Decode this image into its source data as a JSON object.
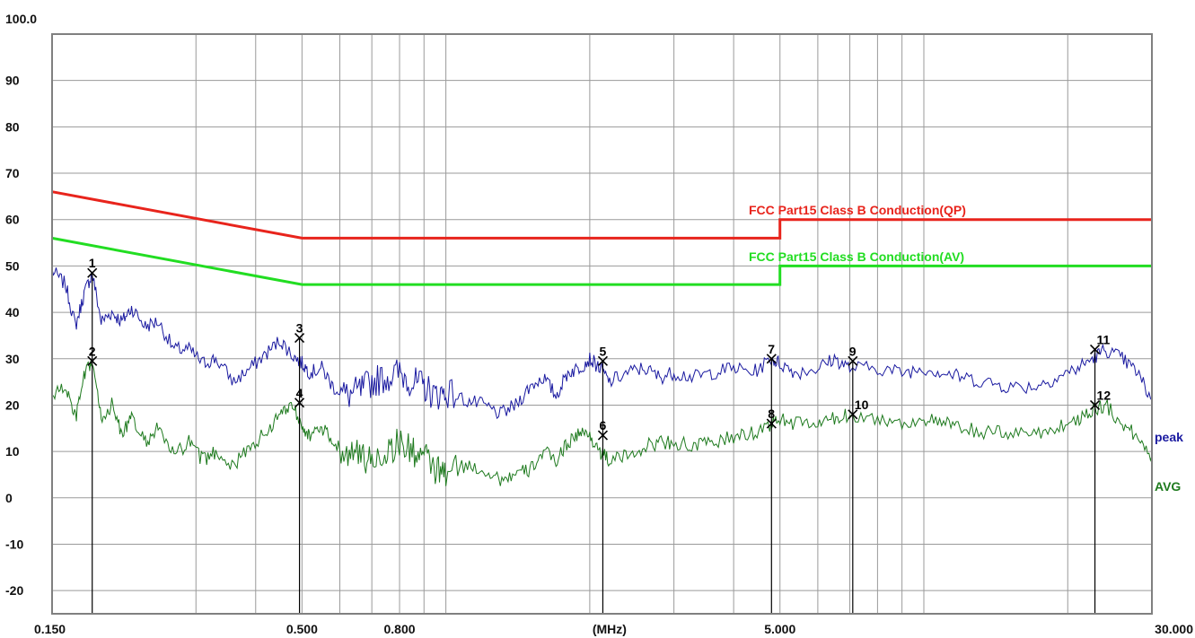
{
  "chart_data": {
    "type": "line",
    "x_scale": "log",
    "xlim": [
      0.15,
      30
    ],
    "ylim": [
      -25,
      100
    ],
    "grid": true,
    "y_top_label": "100.0",
    "y_tick_labels": [
      "90",
      "80",
      "70",
      "60",
      "50",
      "40",
      "30",
      "20",
      "10",
      "0",
      "-10",
      "-20"
    ],
    "y_ticks": [
      90,
      80,
      70,
      60,
      50,
      40,
      30,
      20,
      10,
      0,
      -10,
      -20
    ],
    "x_tick_labels": [
      "0.150",
      "0.500",
      "0.800",
      "(MHz)",
      "5.000",
      "30.000"
    ],
    "x_tick_values": [
      0.15,
      0.5,
      0.8,
      2.2,
      5.0,
      30.0
    ],
    "x_gridlines": [
      0.3,
      0.4,
      0.5,
      0.6,
      0.7,
      0.8,
      0.9,
      1,
      2,
      3,
      4,
      5,
      6,
      7,
      8,
      9,
      10,
      20
    ],
    "colors": {
      "grid": "#9a9a9a",
      "frame": "#808080",
      "qp_limit": "#e8241c",
      "av_limit": "#22dd22",
      "peak": "#1a1aa0",
      "avg": "#1e7a1e",
      "marker": "#000000"
    },
    "limit_lines": [
      {
        "name": "FCC Part15 Class B Conduction(QP)",
        "x": [
          0.15,
          0.5,
          5.0,
          5.0,
          30.0
        ],
        "y": [
          66,
          56,
          56,
          60,
          60
        ]
      },
      {
        "name": "FCC Part15 Class B Conduction(AV)",
        "x": [
          0.15,
          0.5,
          5.0,
          5.0,
          30.0
        ],
        "y": [
          56,
          46,
          46,
          50,
          50
        ]
      }
    ],
    "series": [
      {
        "name": "peak",
        "x": [
          0.15,
          0.16,
          0.168,
          0.175,
          0.182,
          0.19,
          0.2,
          0.21,
          0.22,
          0.235,
          0.25,
          0.27,
          0.29,
          0.31,
          0.33,
          0.36,
          0.39,
          0.42,
          0.45,
          0.475,
          0.5,
          0.52,
          0.55,
          0.58,
          0.62,
          0.66,
          0.7,
          0.75,
          0.8,
          0.85,
          0.9,
          0.95,
          1.0,
          1.1,
          1.2,
          1.3,
          1.4,
          1.5,
          1.6,
          1.7,
          1.8,
          1.9,
          2.0,
          2.1,
          2.2,
          2.4,
          2.6,
          2.8,
          3.0,
          3.3,
          3.6,
          4.0,
          4.4,
          4.8,
          5.0,
          5.4,
          6.0,
          6.5,
          7.0,
          8.0,
          9.0,
          10.0,
          11.0,
          12.0,
          13.5,
          15.0,
          17.0,
          19.0,
          21.0,
          22.5,
          24.0,
          26.0,
          28.0,
          30.0
        ],
        "y": [
          49,
          46,
          37,
          44,
          48.5,
          38,
          40,
          38,
          41,
          37,
          38,
          32,
          32,
          29,
          30,
          25,
          28,
          31,
          34,
          31,
          29,
          27,
          28,
          24,
          22,
          23,
          25,
          26,
          27,
          25,
          24,
          22,
          23,
          21,
          20,
          18,
          20,
          24,
          26,
          22,
          27,
          28,
          30,
          28,
          25,
          27,
          28,
          26,
          27,
          26,
          27,
          28,
          27,
          30,
          29,
          27,
          28,
          30,
          28,
          28,
          27,
          28,
          27,
          26,
          25,
          24,
          24,
          26,
          28,
          30,
          32,
          30,
          27,
          21
        ]
      },
      {
        "name": "AVG",
        "x": [
          0.15,
          0.16,
          0.168,
          0.175,
          0.182,
          0.19,
          0.2,
          0.21,
          0.22,
          0.235,
          0.25,
          0.27,
          0.29,
          0.31,
          0.33,
          0.36,
          0.39,
          0.42,
          0.45,
          0.475,
          0.5,
          0.52,
          0.55,
          0.58,
          0.62,
          0.66,
          0.7,
          0.75,
          0.8,
          0.85,
          0.9,
          0.95,
          1.0,
          1.1,
          1.2,
          1.3,
          1.4,
          1.5,
          1.6,
          1.7,
          1.8,
          1.9,
          2.0,
          2.1,
          2.2,
          2.4,
          2.6,
          2.8,
          3.0,
          3.3,
          3.6,
          4.0,
          4.4,
          4.8,
          5.0,
          5.4,
          6.0,
          6.5,
          7.0,
          8.0,
          9.0,
          10.0,
          11.0,
          12.0,
          13.5,
          15.0,
          17.0,
          19.0,
          21.0,
          22.5,
          24.0,
          26.0,
          28.0,
          30.0
        ],
        "y": [
          22,
          24,
          17,
          26,
          29.5,
          17,
          20,
          14,
          17,
          12,
          15,
          9,
          12,
          8,
          10,
          7,
          11,
          14,
          18,
          20.5,
          16,
          13,
          15,
          12,
          10,
          9,
          8,
          10,
          12,
          10,
          9,
          6,
          5,
          7,
          6,
          4,
          5,
          6,
          10,
          8,
          12,
          14,
          13.5,
          10,
          8,
          9,
          11,
          12,
          12,
          11,
          12,
          13,
          14,
          16,
          17,
          16,
          16,
          17,
          18,
          17,
          16,
          17,
          16,
          15,
          14,
          14,
          14,
          15,
          17,
          19,
          20,
          16,
          13,
          9
        ]
      }
    ],
    "markers": [
      {
        "label": "1",
        "x": 0.182,
        "y": 48.5
      },
      {
        "label": "2",
        "x": 0.182,
        "y": 29.5
      },
      {
        "label": "3",
        "x": 0.494,
        "y": 34.5
      },
      {
        "label": "4",
        "x": 0.494,
        "y": 20.5
      },
      {
        "label": "5",
        "x": 2.13,
        "y": 29.5
      },
      {
        "label": "6",
        "x": 2.13,
        "y": 13.5
      },
      {
        "label": "7",
        "x": 4.8,
        "y": 30.0
      },
      {
        "label": "8",
        "x": 4.8,
        "y": 16.0
      },
      {
        "label": "9",
        "x": 7.1,
        "y": 29.5
      },
      {
        "label": "10",
        "x": 7.1,
        "y": 18.0
      },
      {
        "label": "11",
        "x": 22.8,
        "y": 32.0
      },
      {
        "label": "12",
        "x": 22.8,
        "y": 20.0
      }
    ]
  }
}
